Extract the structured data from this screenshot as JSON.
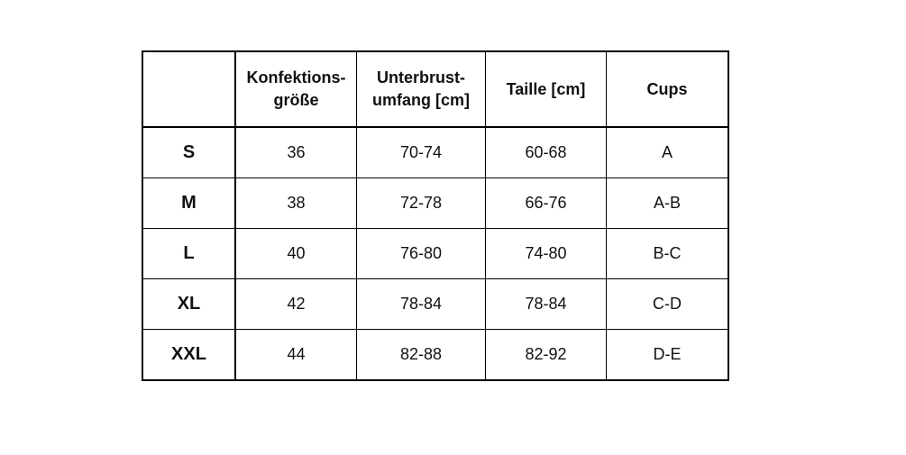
{
  "headers": [
    "",
    "Konfektions-\ngröße",
    "Unterbrust-\numfang [cm]",
    "Taille [cm]",
    "Cups"
  ],
  "header_lines": [
    [],
    [
      "Konfektions-",
      "größe"
    ],
    [
      "Unterbrust-",
      "umfang [cm]"
    ],
    [
      "Taille [cm]"
    ],
    [
      "Cups"
    ]
  ],
  "rows": [
    [
      "S",
      "36",
      "70-74",
      "60-68",
      "A"
    ],
    [
      "M",
      "38",
      "72-78",
      "66-76",
      "A-B"
    ],
    [
      "L",
      "40",
      "76-80",
      "74-80",
      "B-C"
    ],
    [
      "XL",
      "42",
      "78-84",
      "78-84",
      "C-D"
    ],
    [
      "XXL",
      "44",
      "82-88",
      "82-92",
      "D-E"
    ]
  ]
}
